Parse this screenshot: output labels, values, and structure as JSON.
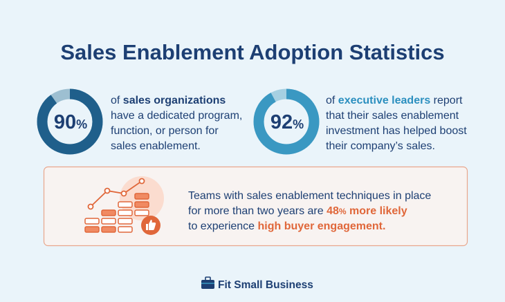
{
  "title": "Sales Enablement Adoption Statistics",
  "stats": [
    {
      "value": 90,
      "unit": "%",
      "color": "#1f5f8b",
      "track_color": "#9dbfd1",
      "emphasis_color": "#1d3f73",
      "lines": [
        [
          {
            "text": "of "
          },
          {
            "text": "sales organizations",
            "bold": true
          }
        ],
        [
          {
            "text": "have a dedicated program,"
          }
        ],
        [
          {
            "text": "function, or person for"
          }
        ],
        [
          {
            "text": "sales enablement."
          }
        ]
      ]
    },
    {
      "value": 92,
      "unit": "%",
      "color": "#3a98c2",
      "track_color": "#a6d0e2",
      "emphasis_color": "#2b8fbf",
      "lines": [
        [
          {
            "text": "of "
          },
          {
            "text": "executive leaders",
            "bold": true
          },
          {
            "text": " report"
          }
        ],
        [
          {
            "text": "that their sales enablement"
          }
        ],
        [
          {
            "text": "investment has helped boost"
          }
        ],
        [
          {
            "text": "their company’s sales."
          }
        ]
      ]
    }
  ],
  "callout": {
    "emphasis_color": "#e0673a",
    "lines": [
      [
        {
          "text": "Teams with sales enablement techniques in place"
        }
      ],
      [
        {
          "text": "for more than two years are "
        },
        {
          "text": "48",
          "bold": true
        },
        {
          "text": "%",
          "bold": true,
          "small": true
        },
        {
          "text": " more likely",
          "bold": true
        }
      ],
      [
        {
          "text": "to experience "
        },
        {
          "text": "high buyer engagement.",
          "bold": true
        }
      ]
    ]
  },
  "footer": {
    "brand": "Fit Small Business"
  }
}
